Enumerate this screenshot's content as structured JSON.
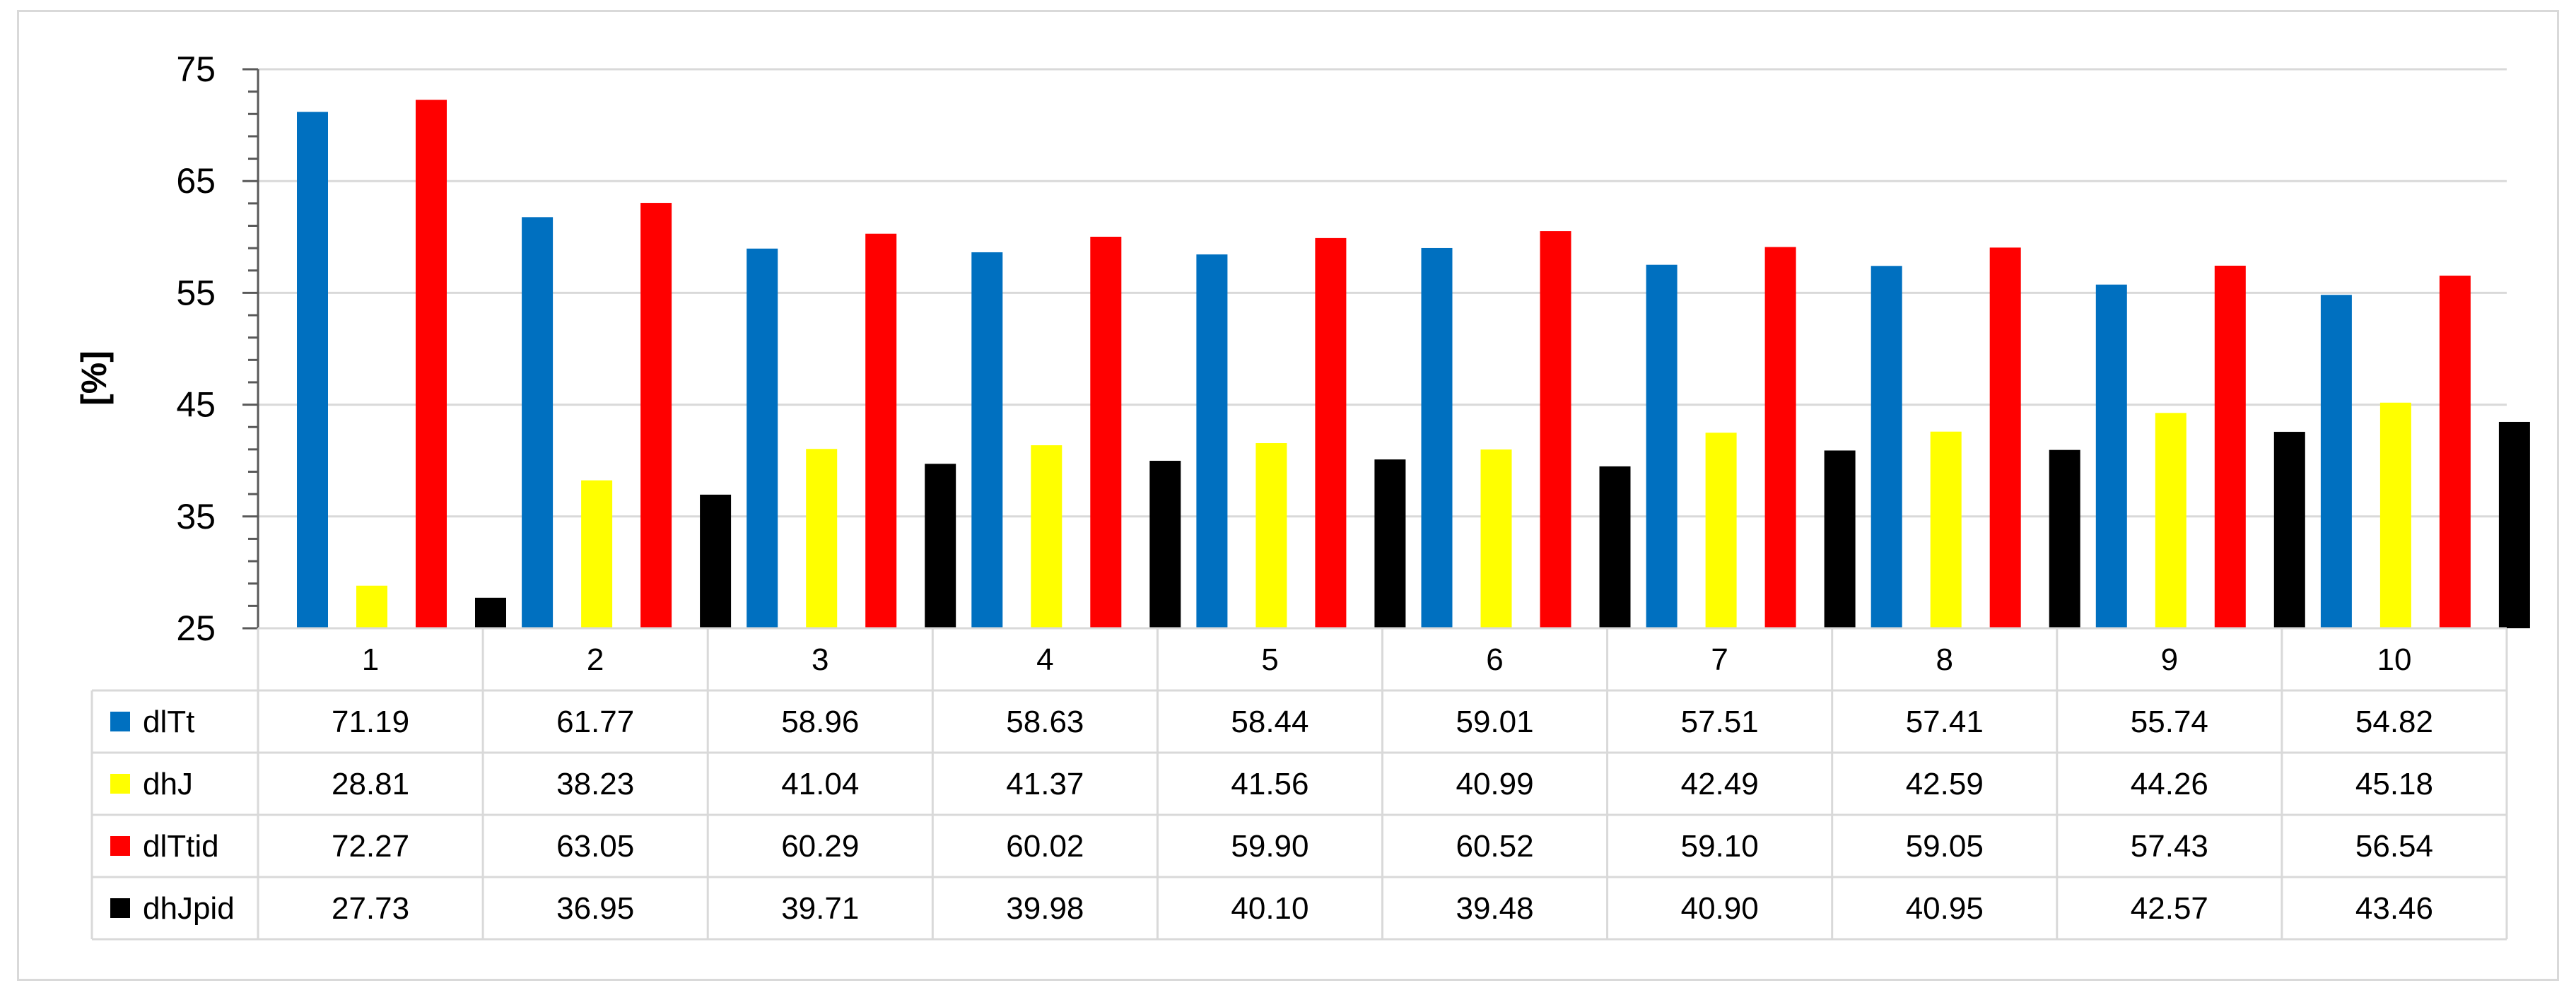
{
  "chart_data": {
    "type": "bar",
    "title": "",
    "xlabel": "",
    "ylabel": "[%]",
    "ylim": [
      25,
      75
    ],
    "yticks": [
      25,
      35,
      45,
      55,
      65,
      75
    ],
    "grid": true,
    "legend": "data-table",
    "categories": [
      "1",
      "2",
      "3",
      "4",
      "5",
      "6",
      "7",
      "8",
      "9",
      "10"
    ],
    "series": [
      {
        "name": "dlTt",
        "color": "#0070c0",
        "values": [
          "71.19",
          "61.77",
          "58.96",
          "58.63",
          "58.44",
          "59.01",
          "57.51",
          "57.41",
          "55.74",
          "54.82"
        ]
      },
      {
        "name": "dhJ",
        "color": "#ffff00",
        "values": [
          "28.81",
          "38.23",
          "41.04",
          "41.37",
          "41.56",
          "40.99",
          "42.49",
          "42.59",
          "44.26",
          "45.18"
        ]
      },
      {
        "name": "dlTtid",
        "color": "#ff0000",
        "values": [
          "72.27",
          "63.05",
          "60.29",
          "60.02",
          "59.90",
          "60.52",
          "59.10",
          "59.05",
          "57.43",
          "56.54"
        ]
      },
      {
        "name": "dhJpid",
        "color": "#000000",
        "values": [
          "27.73",
          "36.95",
          "39.71",
          "39.98",
          "40.10",
          "39.48",
          "40.90",
          "40.95",
          "42.57",
          "43.46"
        ]
      }
    ]
  }
}
